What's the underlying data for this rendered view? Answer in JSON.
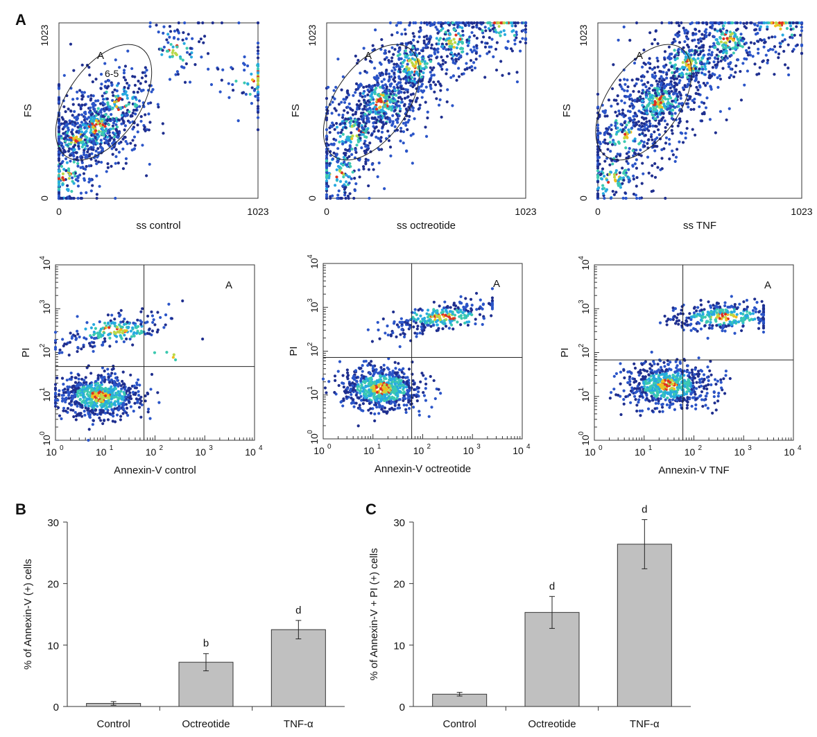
{
  "figure": {
    "panel_labels": [
      "A",
      "B",
      "C"
    ]
  },
  "chart_data": [
    {
      "type": "scatter",
      "xlabel": "ss control",
      "ylabel": "FS",
      "xlim": [
        0,
        1023
      ],
      "ylim": [
        0,
        1023
      ],
      "x_ticks": [
        "0",
        "1023"
      ],
      "y_ticks": [
        "0",
        "1023"
      ],
      "gate_label": "A",
      "gate_value": "6-5",
      "points_note": "",
      "clusters": [
        {
          "x": 95,
          "y": 355,
          "n": 300
        },
        {
          "x": 200,
          "y": 420,
          "n": 320
        },
        {
          "x": 320,
          "y": 560,
          "n": 160
        },
        {
          "x": 30,
          "y": 120,
          "n": 140
        },
        {
          "x": 600,
          "y": 860,
          "n": 90
        },
        {
          "x": 1015,
          "y": 700,
          "n": 80
        }
      ]
    },
    {
      "type": "scatter",
      "xlabel": "ss octreotide",
      "ylabel": "FS",
      "xlim": [
        0,
        1023
      ],
      "ylim": [
        0,
        1023
      ],
      "x_ticks": [
        "0",
        "1023"
      ],
      "y_ticks": [
        "0",
        "1023"
      ],
      "gate_label": "A",
      "gate_value": "",
      "clusters": [
        {
          "x": 140,
          "y": 380,
          "n": 200
        },
        {
          "x": 280,
          "y": 560,
          "n": 450
        },
        {
          "x": 450,
          "y": 780,
          "n": 300
        },
        {
          "x": 650,
          "y": 920,
          "n": 220
        },
        {
          "x": 60,
          "y": 140,
          "n": 150
        },
        {
          "x": 900,
          "y": 1010,
          "n": 120
        }
      ]
    },
    {
      "type": "scatter",
      "xlabel": "ss TNF",
      "ylabel": "FS",
      "xlim": [
        0,
        1023
      ],
      "ylim": [
        0,
        1023
      ],
      "x_ticks": [
        "0",
        "1023"
      ],
      "y_ticks": [
        "0",
        "1023"
      ],
      "gate_label": "A",
      "gate_value": "",
      "clusters": [
        {
          "x": 140,
          "y": 360,
          "n": 200
        },
        {
          "x": 300,
          "y": 560,
          "n": 450
        },
        {
          "x": 460,
          "y": 780,
          "n": 300
        },
        {
          "x": 650,
          "y": 920,
          "n": 220
        },
        {
          "x": 80,
          "y": 120,
          "n": 150
        },
        {
          "x": 900,
          "y": 1010,
          "n": 120
        }
      ]
    },
    {
      "type": "scatter",
      "xlabel": "Annexin-V control",
      "ylabel": "PI",
      "x_scale": "log",
      "y_scale": "log",
      "xlim": [
        1,
        10000
      ],
      "ylim": [
        1,
        10000
      ],
      "x_ticks": [
        "10",
        "10",
        "10",
        "10",
        "10"
      ],
      "tick_exponents": [
        "0",
        "1",
        "2",
        "3",
        "4"
      ],
      "quadrant_x": 60,
      "quadrant_y": 48,
      "quadrant_label": "A",
      "clusters": [
        {
          "x": 8,
          "y": 10,
          "n": 650
        },
        {
          "x": 15,
          "y": 320,
          "n": 200
        },
        {
          "x": 300,
          "y": 85,
          "n": 6
        }
      ]
    },
    {
      "type": "scatter",
      "xlabel": "Annexin-V octreotide",
      "ylabel": "PI",
      "x_scale": "log",
      "y_scale": "log",
      "xlim": [
        1,
        10000
      ],
      "ylim": [
        1,
        10000
      ],
      "x_ticks": [
        "10",
        "10",
        "10",
        "10",
        "10"
      ],
      "tick_exponents": [
        "0",
        "1",
        "2",
        "3",
        "4"
      ],
      "quadrant_x": 60,
      "quadrant_y": 72,
      "quadrant_label": "A",
      "clusters": [
        {
          "x": 15,
          "y": 14,
          "n": 650
        },
        {
          "x": 250,
          "y": 600,
          "n": 280
        }
      ]
    },
    {
      "type": "scatter",
      "xlabel": "Annexin-V TNF",
      "ylabel": "PI",
      "x_scale": "log",
      "y_scale": "log",
      "xlim": [
        1,
        10000
      ],
      "ylim": [
        1,
        10000
      ],
      "x_ticks": [
        "10",
        "10",
        "10",
        "10",
        "10"
      ],
      "tick_exponents": [
        "0",
        "1",
        "2",
        "3",
        "4"
      ],
      "quadrant_x": 60,
      "quadrant_y": 68,
      "quadrant_label": "A",
      "clusters": [
        {
          "x": 30,
          "y": 18,
          "n": 650
        },
        {
          "x": 400,
          "y": 650,
          "n": 300
        }
      ]
    },
    {
      "type": "bar",
      "categories": [
        "Control",
        "Octreotide",
        "TNF-α"
      ],
      "values": [
        0.5,
        7.2,
        12.5
      ],
      "errors": [
        0.3,
        1.4,
        1.5
      ],
      "significance": [
        "",
        "b",
        "d"
      ],
      "ylabel": "% of Annexin-V (+) cells",
      "xlabel": "",
      "ylim": [
        0,
        30
      ],
      "y_ticks": [
        "0",
        "10",
        "20",
        "30"
      ]
    },
    {
      "type": "bar",
      "categories": [
        "Control",
        "Octreotide",
        "TNF-α"
      ],
      "values": [
        2.0,
        15.3,
        26.4
      ],
      "errors": [
        0.3,
        2.6,
        4.0
      ],
      "significance": [
        "",
        "d",
        "d"
      ],
      "ylabel": "% of Annexin-V + PI (+) cells",
      "xlabel": "",
      "ylim": [
        0,
        30
      ],
      "y_ticks": [
        "0",
        "10",
        "20",
        "30"
      ]
    }
  ]
}
